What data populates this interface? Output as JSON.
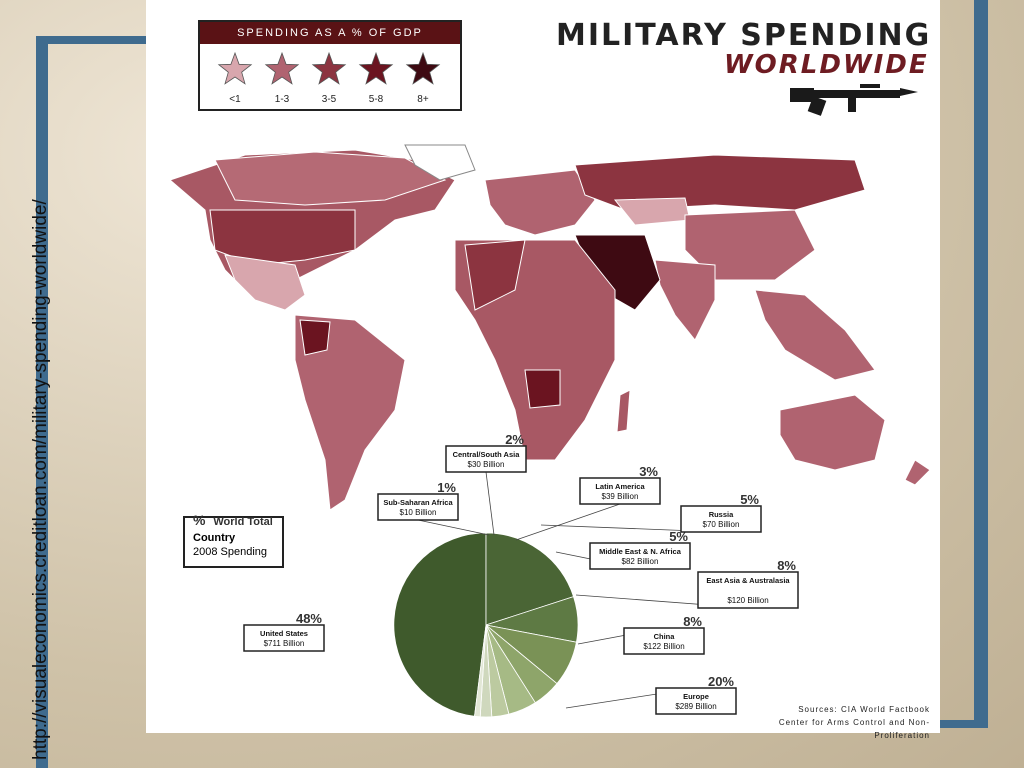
{
  "url_text": "http://visualeconomics.creditloan.com/military-spending-worldwide/",
  "title_line1": "MILITARY SPENDING",
  "title_line2": "WORLDWIDE",
  "legend": {
    "title": "SPENDING AS A % OF GDP",
    "items": [
      {
        "label": "<1",
        "color": "#d8a6ad"
      },
      {
        "label": "1-3",
        "color": "#b06370"
      },
      {
        "label": "3-5",
        "color": "#8c3440"
      },
      {
        "label": "5-8",
        "color": "#6b1420"
      },
      {
        "label": "8+",
        "color": "#3e0a12"
      }
    ]
  },
  "key_box": {
    "line1_pct": "%",
    "line1_text": "World Total",
    "line2": "Country",
    "line3": "2008 Spending"
  },
  "sources": {
    "line1": "Sources: CIA World Factbook",
    "line2": "Center for Arms Control and Non-Proliferation"
  },
  "chart_data": {
    "type": "pie",
    "title": "",
    "slices": [
      {
        "name": "United States",
        "pct": "48%",
        "spending": "$711 Billion",
        "value": 48,
        "color": "#3f5a2c"
      },
      {
        "name": "Europe",
        "pct": "20%",
        "spending": "$289 Billion",
        "value": 20,
        "color": "#4a6535"
      },
      {
        "name": "China",
        "pct": "8%",
        "spending": "$122 Billion",
        "value": 8,
        "color": "#5e7a44"
      },
      {
        "name": "East Asia & Australasia",
        "pct": "8%",
        "spending": "$120 Billion",
        "value": 8,
        "color": "#7a9256"
      },
      {
        "name": "Middle East & N. Africa",
        "pct": "5%",
        "spending": "$82 Billion",
        "value": 5,
        "color": "#8ea56a"
      },
      {
        "name": "Russia",
        "pct": "5%",
        "spending": "$70 Billion",
        "value": 5,
        "color": "#a6ba85"
      },
      {
        "name": "Latin America",
        "pct": "3%",
        "spending": "$39 Billion",
        "value": 3,
        "color": "#bccaa0"
      },
      {
        "name": "Central/South Asia",
        "pct": "2%",
        "spending": "$30 Billion",
        "value": 2,
        "color": "#cfd8bd"
      },
      {
        "name": "Sub-Saharan Africa",
        "pct": "1%",
        "spending": "$10 Billion",
        "value": 1,
        "color": "#e2e7d6"
      }
    ]
  }
}
